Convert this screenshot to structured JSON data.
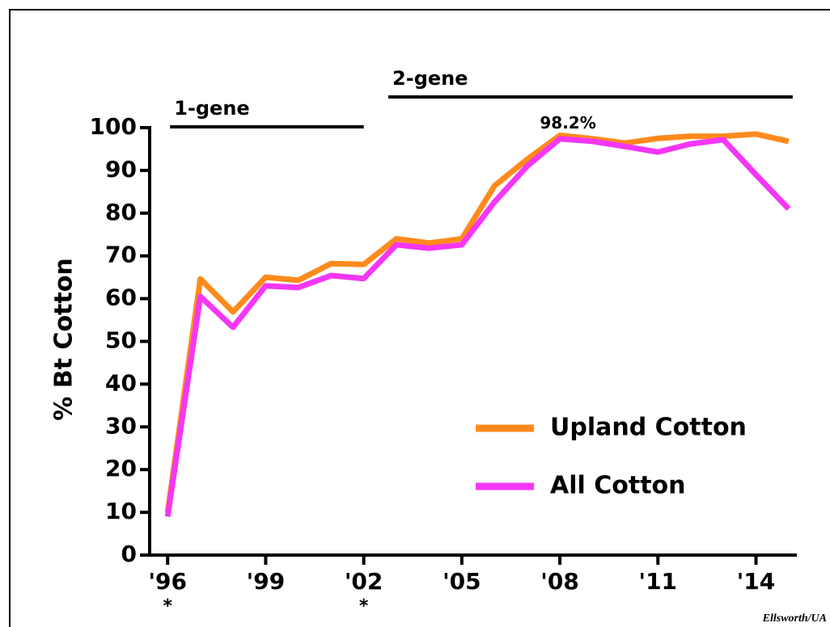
{
  "chart_data": {
    "type": "line",
    "y_label": "% Bt Cotton",
    "x": [
      1996,
      1997,
      1998,
      1999,
      2000,
      2001,
      2002,
      2003,
      2004,
      2005,
      2006,
      2007,
      2008,
      2009,
      2010,
      2011,
      2012,
      2013,
      2014,
      2015
    ],
    "series": [
      {
        "name": "Upland Cotton",
        "color": "#ff8a1c",
        "values": [
          10,
          64.6,
          56.9,
          65,
          64.3,
          68.2,
          68,
          74,
          73,
          74,
          86.4,
          92.6,
          98.2,
          97.4,
          96.4,
          97.5,
          98,
          98,
          98.5,
          96.8
        ]
      },
      {
        "name": "All Cotton",
        "color": "#f536f5",
        "values": [
          9,
          60.5,
          53.3,
          63,
          62.6,
          65.4,
          64.7,
          72.6,
          71.8,
          72.6,
          82.6,
          91,
          97.4,
          96.8,
          95.6,
          94.3,
          96.2,
          97.2,
          89,
          81
        ]
      }
    ],
    "xlim": [
      1995.45,
      2015.25
    ],
    "ylim": [
      0,
      100
    ],
    "yticks": [
      0,
      10,
      20,
      30,
      40,
      50,
      60,
      70,
      80,
      90,
      100
    ],
    "xticks": [
      {
        "value": 1996,
        "label": "'96"
      },
      {
        "value": 1999,
        "label": "'99"
      },
      {
        "value": 2002,
        "label": "'02"
      },
      {
        "value": 2005,
        "label": "'05"
      },
      {
        "value": 2008,
        "label": "'08"
      },
      {
        "value": 2011,
        "label": "'11"
      },
      {
        "value": 2014,
        "label": "'14"
      }
    ],
    "annotations": [
      {
        "text": "98.2%",
        "x": 2008,
        "y": 98.2
      },
      {
        "text": "*",
        "x": 1996
      },
      {
        "text": "*",
        "x": 2002
      }
    ],
    "periods": [
      {
        "label": "1-gene",
        "start": 1996,
        "end": 2002
      },
      {
        "label": "2-gene",
        "start": 2003,
        "end": 2015
      }
    ],
    "credit": "Ellsworth/UA"
  }
}
